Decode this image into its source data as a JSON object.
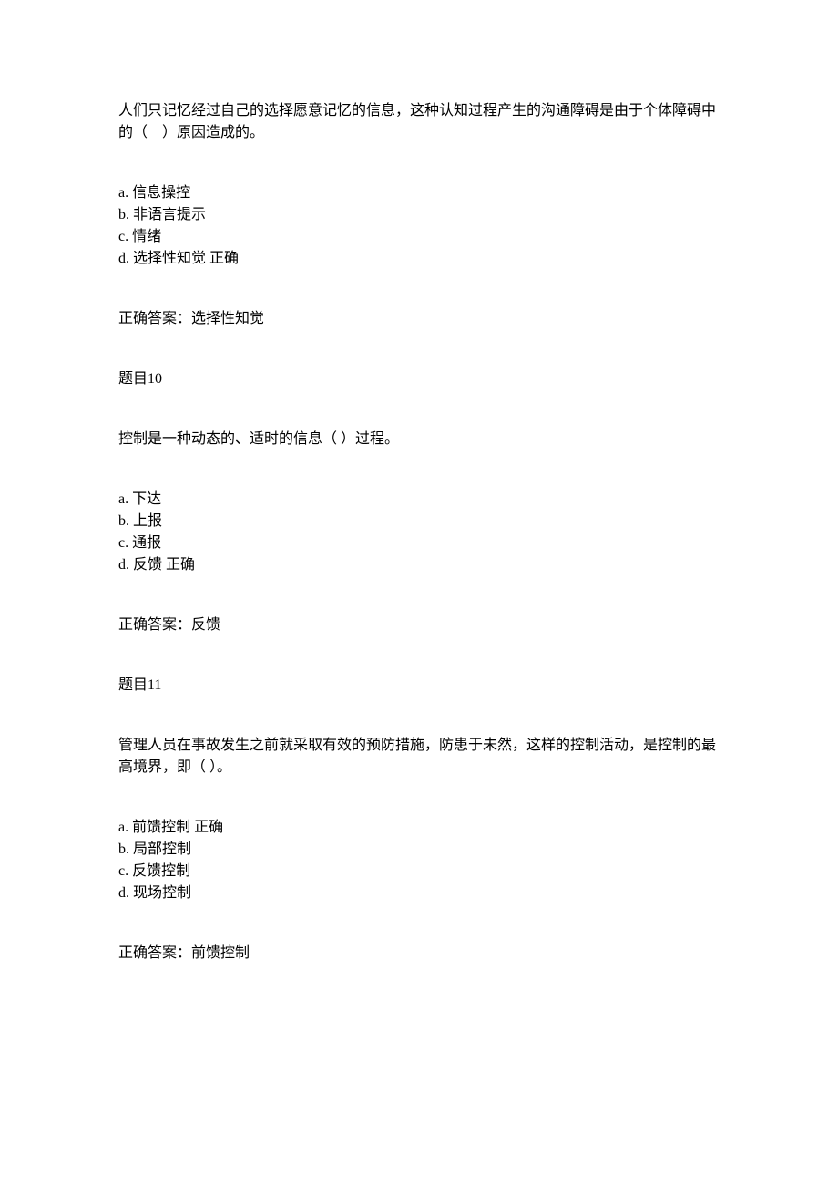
{
  "questions": [
    {
      "text": "人们只记忆经过自己的选择愿意记忆的信息，这种认知过程产生的沟通障碍是由于个体障碍中的（　）原因造成的。",
      "options": [
        "a. 信息操控",
        "b. 非语言提示",
        "c. 情绪",
        "d. 选择性知觉 正确"
      ],
      "answer": "正确答案：选择性知觉"
    },
    {
      "title": "题目10",
      "text": "控制是一种动态的、适时的信息（  ）过程。",
      "options": [
        "a. 下达",
        "b. 上报",
        "c. 通报",
        "d. 反馈 正确"
      ],
      "answer": "正确答案：反馈"
    },
    {
      "title": "题目11",
      "text": "管理人员在事故发生之前就采取有效的预防措施，防患于未然，这样的控制活动，是控制的最高境界，即（  ）。",
      "options": [
        "a. 前馈控制 正确",
        "b. 局部控制",
        "c. 反馈控制",
        "d. 现场控制"
      ],
      "answer": "正确答案：前馈控制"
    }
  ]
}
